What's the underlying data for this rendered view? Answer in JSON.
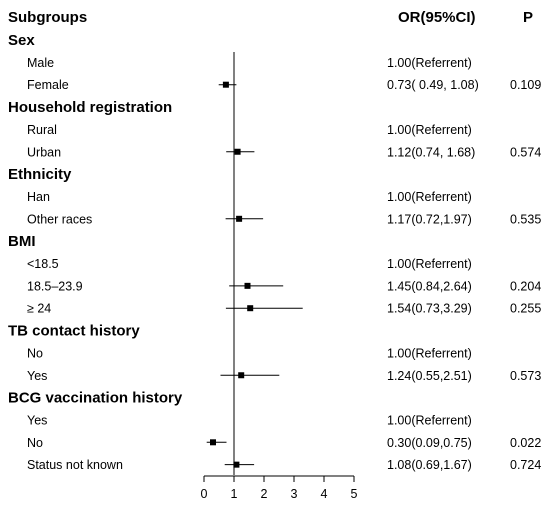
{
  "chart_data": {
    "type": "forest",
    "headers": {
      "subgroups": "Subgroups",
      "or": "OR(95%CI)",
      "p": "P"
    },
    "reference_line": 1,
    "xlim": [
      0,
      5
    ],
    "x_ticks": [
      "0",
      "1",
      "2",
      "3",
      "4",
      "5"
    ],
    "rows": [
      {
        "kind": "group",
        "label": "Sex"
      },
      {
        "kind": "item",
        "label": "Male",
        "or_text": "1.00(Referrent)",
        "p": ""
      },
      {
        "kind": "item",
        "label": "Female",
        "or": 0.73,
        "lo": 0.49,
        "hi": 1.08,
        "or_text": "0.73( 0.49, 1.08)",
        "p": "0.109"
      },
      {
        "kind": "group",
        "label": "Household registration"
      },
      {
        "kind": "item",
        "label": "Rural",
        "or_text": "1.00(Referrent)",
        "p": ""
      },
      {
        "kind": "item",
        "label": "Urban",
        "or": 1.12,
        "lo": 0.74,
        "hi": 1.68,
        "or_text": "1.12(0.74, 1.68)",
        "p": "0.574"
      },
      {
        "kind": "group",
        "label": "Ethnicity"
      },
      {
        "kind": "item",
        "label": "Han",
        "or_text": "1.00(Referrent)",
        "p": ""
      },
      {
        "kind": "item",
        "label": "Other races",
        "or": 1.17,
        "lo": 0.72,
        "hi": 1.97,
        "or_text": "1.17(0.72,1.97)",
        "p": "0.535"
      },
      {
        "kind": "group",
        "label": "BMI"
      },
      {
        "kind": "item",
        "label": "<18.5",
        "or_text": "1.00(Referrent)",
        "p": ""
      },
      {
        "kind": "item",
        "label": "18.5–23.9",
        "or": 1.45,
        "lo": 0.84,
        "hi": 2.64,
        "or_text": "1.45(0.84,2.64)",
        "p": "0.204"
      },
      {
        "kind": "item",
        "label": "≥ 24",
        "or": 1.54,
        "lo": 0.73,
        "hi": 3.29,
        "or_text": "1.54(0.73,3.29)",
        "p": "0.255"
      },
      {
        "kind": "group",
        "label": "TB contact history"
      },
      {
        "kind": "item",
        "label": "No",
        "or_text": "1.00(Referrent)",
        "p": ""
      },
      {
        "kind": "item",
        "label": "Yes",
        "or": 1.24,
        "lo": 0.55,
        "hi": 2.51,
        "or_text": "1.24(0.55,2.51)",
        "p": "0.573"
      },
      {
        "kind": "group",
        "label": "BCG vaccination history"
      },
      {
        "kind": "item",
        "label": "Yes",
        "or_text": "1.00(Referrent)",
        "p": ""
      },
      {
        "kind": "item",
        "label": "No",
        "or": 0.3,
        "lo": 0.09,
        "hi": 0.75,
        "or_text": "0.30(0.09,0.75)",
        "p": "0.022"
      },
      {
        "kind": "item",
        "label": "Status not known",
        "or": 1.08,
        "lo": 0.69,
        "hi": 1.67,
        "or_text": "1.08(0.69,1.67)",
        "p": "0.724"
      }
    ]
  }
}
